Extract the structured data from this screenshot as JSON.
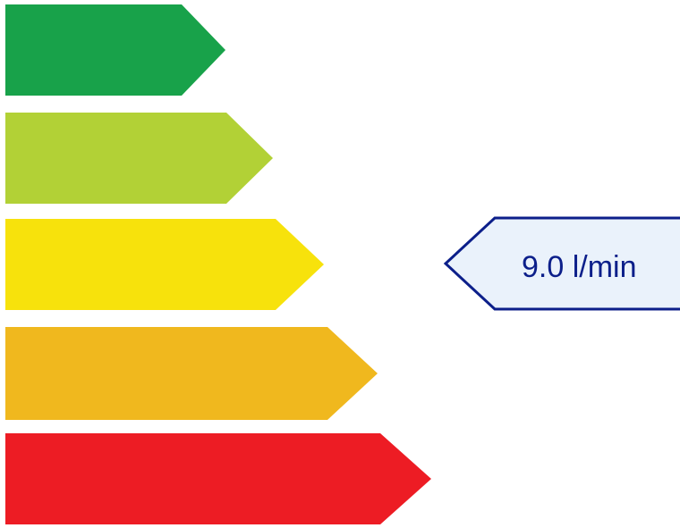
{
  "rating_bars": [
    {
      "color": "#18a24a"
    },
    {
      "color": "#b2d136"
    },
    {
      "color": "#f7e20c"
    },
    {
      "color": "#f0b81e"
    },
    {
      "color": "#ed1c24"
    }
  ],
  "indicator": {
    "value_text": "9.0 l/min",
    "fill_color": "#eaf2fb",
    "stroke_color": "#0c1f8a",
    "text_color": "#0c1f8a"
  }
}
